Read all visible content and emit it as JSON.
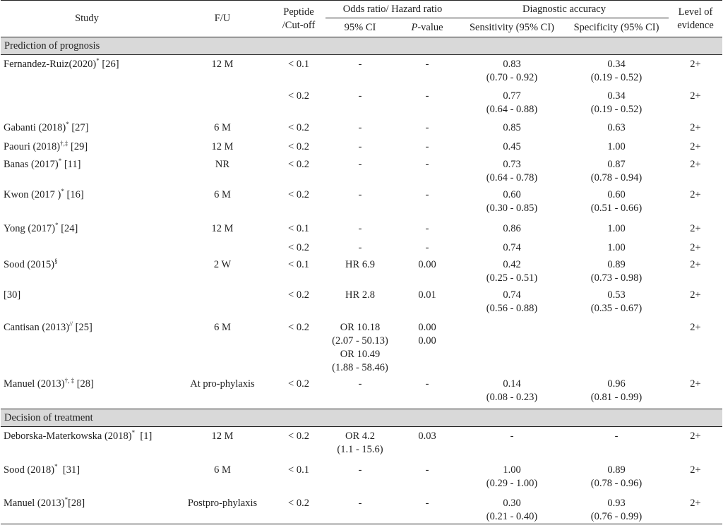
{
  "header": {
    "study": "Study",
    "fu": "F/U",
    "peptide_line1": "Peptide",
    "peptide_line2": "/Cut-off",
    "odds_ratio": "Odds ratio/ Hazard ratio",
    "ci95": "95% CI",
    "p_value_italic": "P",
    "p_value_rest": "-value",
    "diag_accuracy": "Diagnostic accuracy",
    "sensitivity": "Sensitivity (95% CI)",
    "specificity": "Specificity (95% CI)",
    "level_line1": "Level of",
    "level_line2": "evidence"
  },
  "sections": {
    "prognosis": "Prediction of prognosis",
    "treatment": "Decision of treatment"
  },
  "rows": [
    {
      "study": "Fernandez-Ruiz(2020)",
      "sup": "*",
      "ref": " [26]",
      "fu": "12 M",
      "cut": "< 0.1",
      "ci": [
        "-"
      ],
      "p": [
        "-"
      ],
      "sens": [
        "0.83",
        "(0.70 - 0.92)"
      ],
      "spec": [
        "0.34",
        "(0.19 - 0.52)"
      ],
      "lev": "2+"
    },
    {
      "study": "",
      "sup": "",
      "ref": "",
      "fu": "",
      "cut": "< 0.2",
      "ci": [
        "-"
      ],
      "p": [
        "-"
      ],
      "sens": [
        "0.77",
        "(0.64 - 0.88)"
      ],
      "spec": [
        "0.34",
        "(0.19 - 0.52)"
      ],
      "lev": "2+"
    },
    {
      "study": "Gabanti (2018)",
      "sup": "*",
      "ref": " [27]",
      "fu": "6 M",
      "cut": "< 0.2",
      "ci": [
        "-"
      ],
      "p": [
        "-"
      ],
      "sens": [
        "0.85"
      ],
      "spec": [
        "0.63"
      ],
      "lev": "2+"
    },
    {
      "study": "Paouri (2018)",
      "sup": "†,‡",
      "ref": " [29]",
      "fu": "12 M",
      "cut": "< 0.2",
      "ci": [
        "-"
      ],
      "p": [
        "-"
      ],
      "sens": [
        "0.45"
      ],
      "spec": [
        "1.00"
      ],
      "lev": "2+"
    },
    {
      "study": "Banas (2017)",
      "sup": "*",
      "ref": " [11]",
      "fu": "NR",
      "cut": "< 0.2",
      "ci": [
        "-"
      ],
      "p": [
        "-"
      ],
      "sens": [
        "0.73",
        "(0.64 - 0.78)"
      ],
      "spec": [
        "0.87",
        "(0.78 - 0.94)"
      ],
      "lev": "2+"
    },
    {
      "study": "Kwon (2017 )",
      "sup": "*",
      "ref": " [16]",
      "fu": "6 M",
      "cut": "< 0.2",
      "ci": [
        "-"
      ],
      "p": [
        "-"
      ],
      "sens": [
        "0.60",
        "(0.30 - 0.85)"
      ],
      "spec": [
        "0.60",
        "(0.51 - 0.66)"
      ],
      "lev": "2+"
    },
    {
      "study": "Yong (2017)",
      "sup": "*",
      "ref": " [24]",
      "fu": "12 M",
      "cut": "< 0.1",
      "ci": [
        "-"
      ],
      "p": [
        "-"
      ],
      "sens": [
        "0.86"
      ],
      "spec": [
        "1.00"
      ],
      "lev": "2+"
    },
    {
      "study": "",
      "sup": "",
      "ref": "",
      "fu": "",
      "cut": "< 0.2",
      "ci": [
        "-"
      ],
      "p": [
        "-"
      ],
      "sens": [
        "0.74"
      ],
      "spec": [
        "1.00"
      ],
      "lev": "2+"
    },
    {
      "study": "Sood (2015)",
      "sup": "§",
      "ref": "",
      "fu": "2 W",
      "cut": "< 0.1",
      "ci": [
        "HR 6.9"
      ],
      "p": [
        "0.00"
      ],
      "sens": [
        "0.42",
        "(0.25 - 0.51)"
      ],
      "spec": [
        "0.89",
        "(0.73 - 0.98)"
      ],
      "lev": "2+"
    },
    {
      "study": "[30]",
      "sup": "",
      "ref": "",
      "fu": "",
      "cut": "< 0.2",
      "ci": [
        "HR 2.8"
      ],
      "p": [
        "0.01"
      ],
      "sens": [
        "0.74",
        "(0.56 - 0.88)"
      ],
      "spec": [
        "0.53",
        "(0.35 - 0.67)"
      ],
      "lev": "2+"
    },
    {
      "study": "Cantisan (2013)",
      "sup": "//",
      "ref": " [25]",
      "fu": "6 M",
      "cut": "< 0.2",
      "ci": [
        "OR 10.18",
        "(2.07 - 50.13)",
        "OR 10.49",
        "(1.88 - 58.46)"
      ],
      "p": [
        "0.00",
        "0.00"
      ],
      "sens": [],
      "spec": [],
      "lev": "2+"
    },
    {
      "study": "Manuel (2013)",
      "sup": "†, ‡",
      "ref": " [28]",
      "fu": "At pro-phylaxis",
      "cut": "< 0.2",
      "ci": [
        "-"
      ],
      "p": [
        "-"
      ],
      "sens": [
        "0.14",
        "(0.08 - 0.23)"
      ],
      "spec": [
        "0.96",
        "(0.81 - 0.99)"
      ],
      "lev": "2+"
    },
    {
      "study": "Deborska-Materkowska (2018)",
      "sup": "*",
      "ref": "  [1]",
      "fu": "12 M",
      "cut": "< 0.2",
      "ci": [
        "OR 4.2",
        "(1.1 - 15.6)"
      ],
      "p": [
        "0.03"
      ],
      "sens": [
        "-"
      ],
      "spec": [
        "-"
      ],
      "lev": "2+"
    },
    {
      "study": "Sood (2018)",
      "sup": "*",
      "ref": "  [31]",
      "fu": "6 M",
      "cut": "< 0.1",
      "ci": [
        "-"
      ],
      "p": [
        "-"
      ],
      "sens": [
        "1.00",
        "(0.29 - 1.00)"
      ],
      "spec": [
        "0.89",
        "(0.78 - 0.96)"
      ],
      "lev": "2+"
    },
    {
      "study": "Manuel (2013)",
      "sup": "*",
      "ref": "[28]",
      "fu": "Postpro-phylaxis",
      "cut": "< 0.2",
      "ci": [
        "-"
      ],
      "p": [
        "-"
      ],
      "sens": [
        "0.30",
        "(0.21 - 0.40)"
      ],
      "spec": [
        "0.93",
        "(0.76 - 0.99)"
      ],
      "lev": "2+"
    }
  ]
}
